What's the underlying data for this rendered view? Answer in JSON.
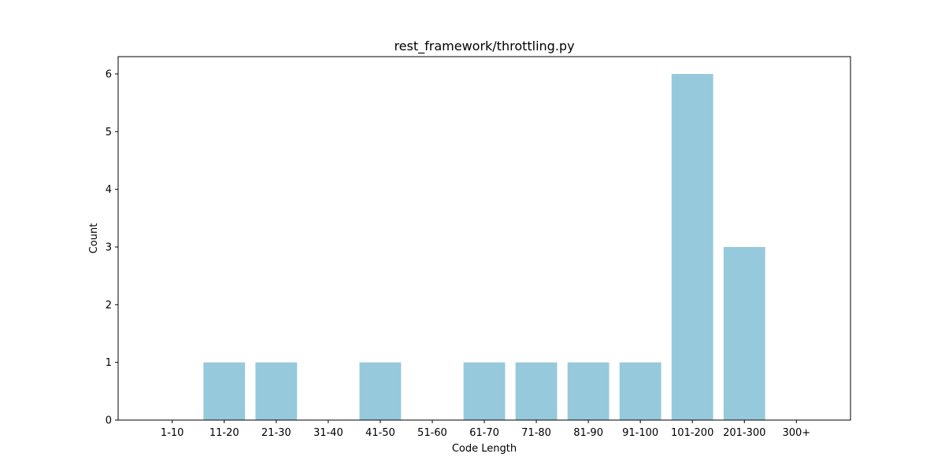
{
  "chart_data": {
    "type": "bar",
    "title": "rest_framework/throttling.py",
    "xlabel": "Code Length",
    "ylabel": "Count",
    "categories": [
      "1-10",
      "11-20",
      "21-30",
      "31-40",
      "41-50",
      "51-60",
      "61-70",
      "71-80",
      "81-90",
      "91-100",
      "101-200",
      "201-300",
      "300+"
    ],
    "values": [
      0,
      1,
      1,
      0,
      1,
      0,
      1,
      1,
      1,
      1,
      6,
      3,
      0
    ],
    "ylim": [
      0,
      6.3
    ],
    "yticks": [
      0,
      1,
      2,
      3,
      4,
      5,
      6
    ],
    "bar_color": "#96c9dc",
    "grid": false,
    "legend": "none"
  }
}
